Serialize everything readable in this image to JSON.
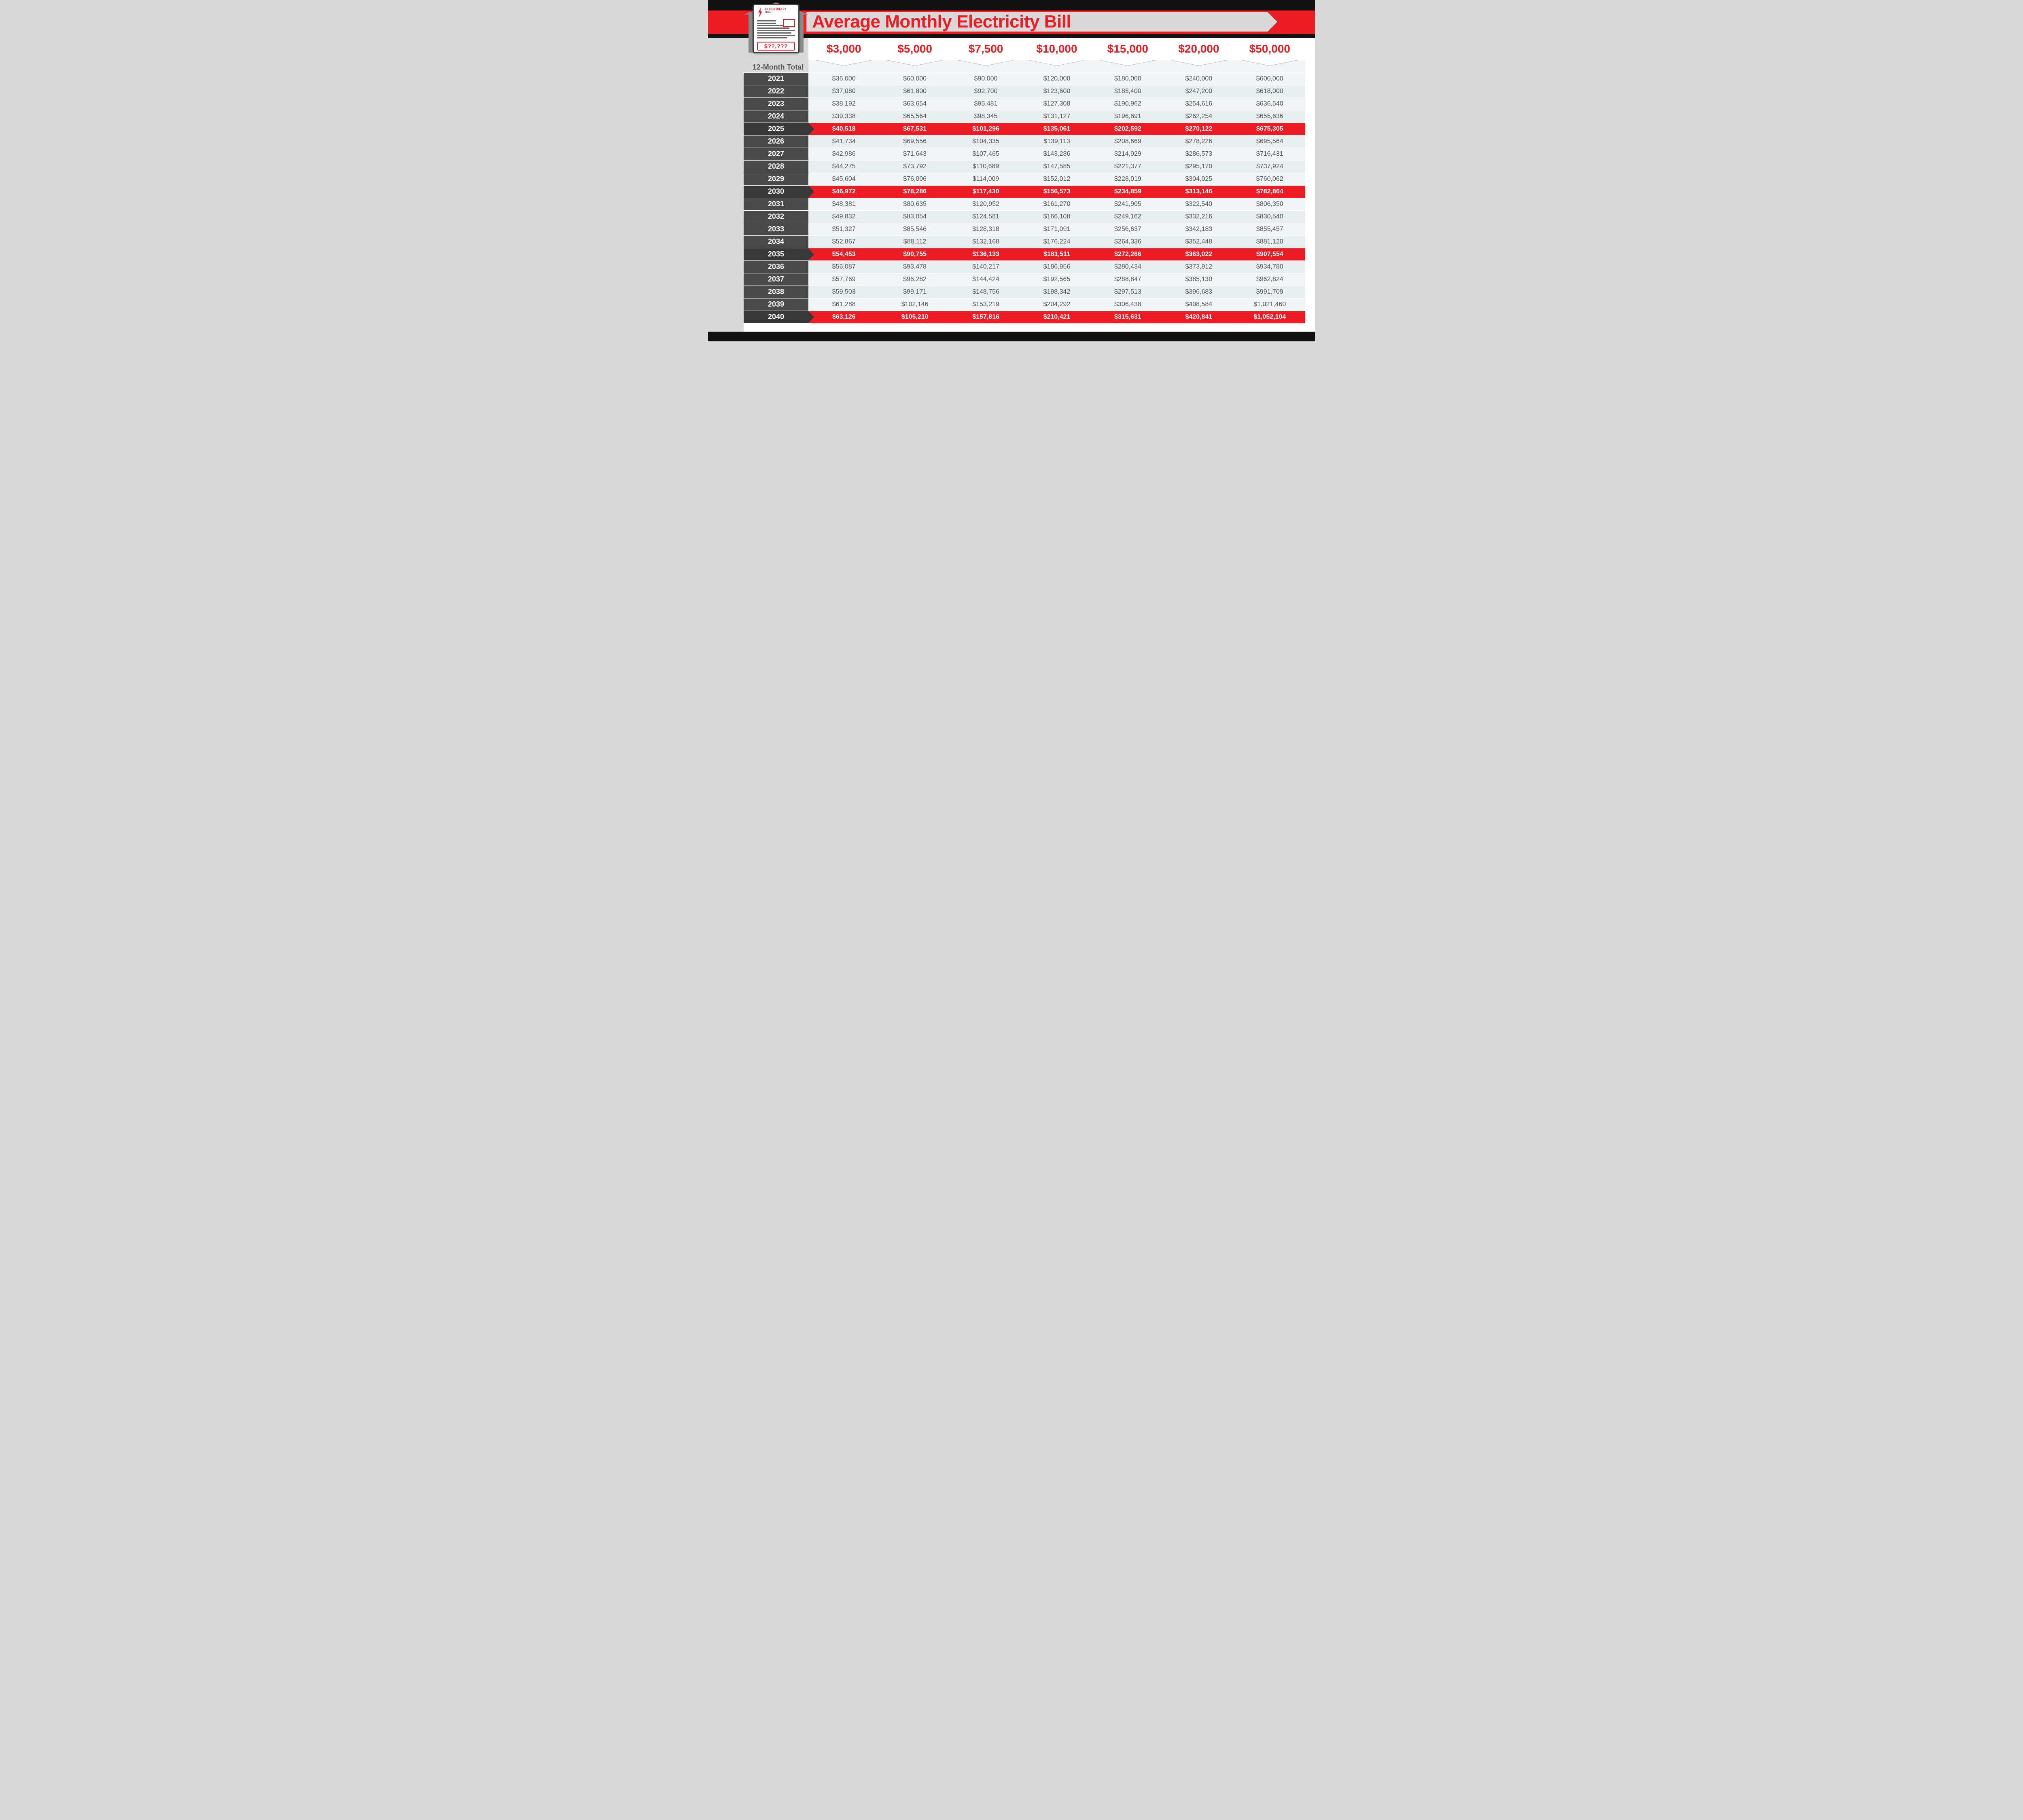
{
  "title": "Average Monthly Electricity Bill",
  "bill_icon": {
    "header_top": "ELECTRICITY",
    "header_bottom": "BILL",
    "total_placeholder": "$??,???"
  },
  "colors": {
    "accent_red": "#ed1c24",
    "dark_bar": "#111111",
    "year_bg": "#4a4a4a",
    "year_bg_hl": "#383838",
    "row_even": "#f1f5f5",
    "row_odd": "#e9efef",
    "page_bg": "#d9d9d9",
    "text_muted": "#555555",
    "white": "#ffffff"
  },
  "table": {
    "type": "table",
    "row_header_label": "12-Month Total",
    "columns": [
      "$3,000",
      "$5,000",
      "$7,500",
      "$10,000",
      "$15,000",
      "$20,000",
      "$50,000"
    ],
    "header_fontsize_pt": 21,
    "header_weight": 800,
    "cell_fontsize_pt": 12,
    "year_fontsize_pt": 13,
    "highlight_rows": [
      "2025",
      "2030",
      "2035",
      "2040"
    ],
    "rows": [
      {
        "year": "2021",
        "cells": [
          "$36,000",
          "$60,000",
          "$90,000",
          "$120,000",
          "$180,000",
          "$240,000",
          "$600,000"
        ]
      },
      {
        "year": "2022",
        "cells": [
          "$37,080",
          "$61,800",
          "$92,700",
          "$123,600",
          "$185,400",
          "$247,200",
          "$618,000"
        ]
      },
      {
        "year": "2023",
        "cells": [
          "$38,192",
          "$63,654",
          "$95,481",
          "$127,308",
          "$190,962",
          "$254,616",
          "$636,540"
        ]
      },
      {
        "year": "2024",
        "cells": [
          "$39,338",
          "$65,564",
          "$98,345",
          "$131,127",
          "$196,691",
          "$262,254",
          "$655,636"
        ]
      },
      {
        "year": "2025",
        "cells": [
          "$40,518",
          "$67,531",
          "$101,296",
          "$135,061",
          "$202,592",
          "$270,122",
          "$675,305"
        ]
      },
      {
        "year": "2026",
        "cells": [
          "$41,734",
          "$69,556",
          "$104,335",
          "$139,113",
          "$208,669",
          "$278,226",
          "$695,564"
        ]
      },
      {
        "year": "2027",
        "cells": [
          "$42,986",
          "$71,643",
          "$107,465",
          "$143,286",
          "$214,929",
          "$286,573",
          "$716,431"
        ]
      },
      {
        "year": "2028",
        "cells": [
          "$44,275",
          "$73,792",
          "$110,689",
          "$147,585",
          "$221,377",
          "$295,170",
          "$737,924"
        ]
      },
      {
        "year": "2029",
        "cells": [
          "$45,604",
          "$76,006",
          "$114,009",
          "$152,012",
          "$228,019",
          "$304,025",
          "$760,062"
        ]
      },
      {
        "year": "2030",
        "cells": [
          "$46,972",
          "$78,286",
          "$117,430",
          "$156,573",
          "$234,859",
          "$313,146",
          "$782,864"
        ]
      },
      {
        "year": "2031",
        "cells": [
          "$48,381",
          "$80,635",
          "$120,952",
          "$161,270",
          "$241,905",
          "$322,540",
          "$806,350"
        ]
      },
      {
        "year": "2032",
        "cells": [
          "$49,832",
          "$83,054",
          "$124,581",
          "$166,108",
          "$249,162",
          "$332,216",
          "$830,540"
        ]
      },
      {
        "year": "2033",
        "cells": [
          "$51,327",
          "$85,546",
          "$128,318",
          "$171,091",
          "$256,637",
          "$342,183",
          "$855,457"
        ]
      },
      {
        "year": "2034",
        "cells": [
          "$52,867",
          "$88,112",
          "$132,168",
          "$176,224",
          "$264,336",
          "$352,448",
          "$881,120"
        ]
      },
      {
        "year": "2035",
        "cells": [
          "$54,453",
          "$90,755",
          "$136,133",
          "$181,511",
          "$272,266",
          "$363,022",
          "$907,554"
        ]
      },
      {
        "year": "2036",
        "cells": [
          "$56,087",
          "$93,478",
          "$140,217",
          "$186,956",
          "$280,434",
          "$373,912",
          "$934,780"
        ]
      },
      {
        "year": "2037",
        "cells": [
          "$57,769",
          "$96,282",
          "$144,424",
          "$192,565",
          "$288,847",
          "$385,130",
          "$962,824"
        ]
      },
      {
        "year": "2038",
        "cells": [
          "$59,503",
          "$99,171",
          "$148,756",
          "$198,342",
          "$297,513",
          "$396,683",
          "$991,709"
        ]
      },
      {
        "year": "2039",
        "cells": [
          "$61,288",
          "$102,146",
          "$153,219",
          "$204,292",
          "$306,438",
          "$408,584",
          "$1,021,460"
        ]
      },
      {
        "year": "2040",
        "cells": [
          "$63,126",
          "$105,210",
          "$157,816",
          "$210,421",
          "$315,631",
          "$420,841",
          "$1,052,104"
        ]
      }
    ]
  }
}
